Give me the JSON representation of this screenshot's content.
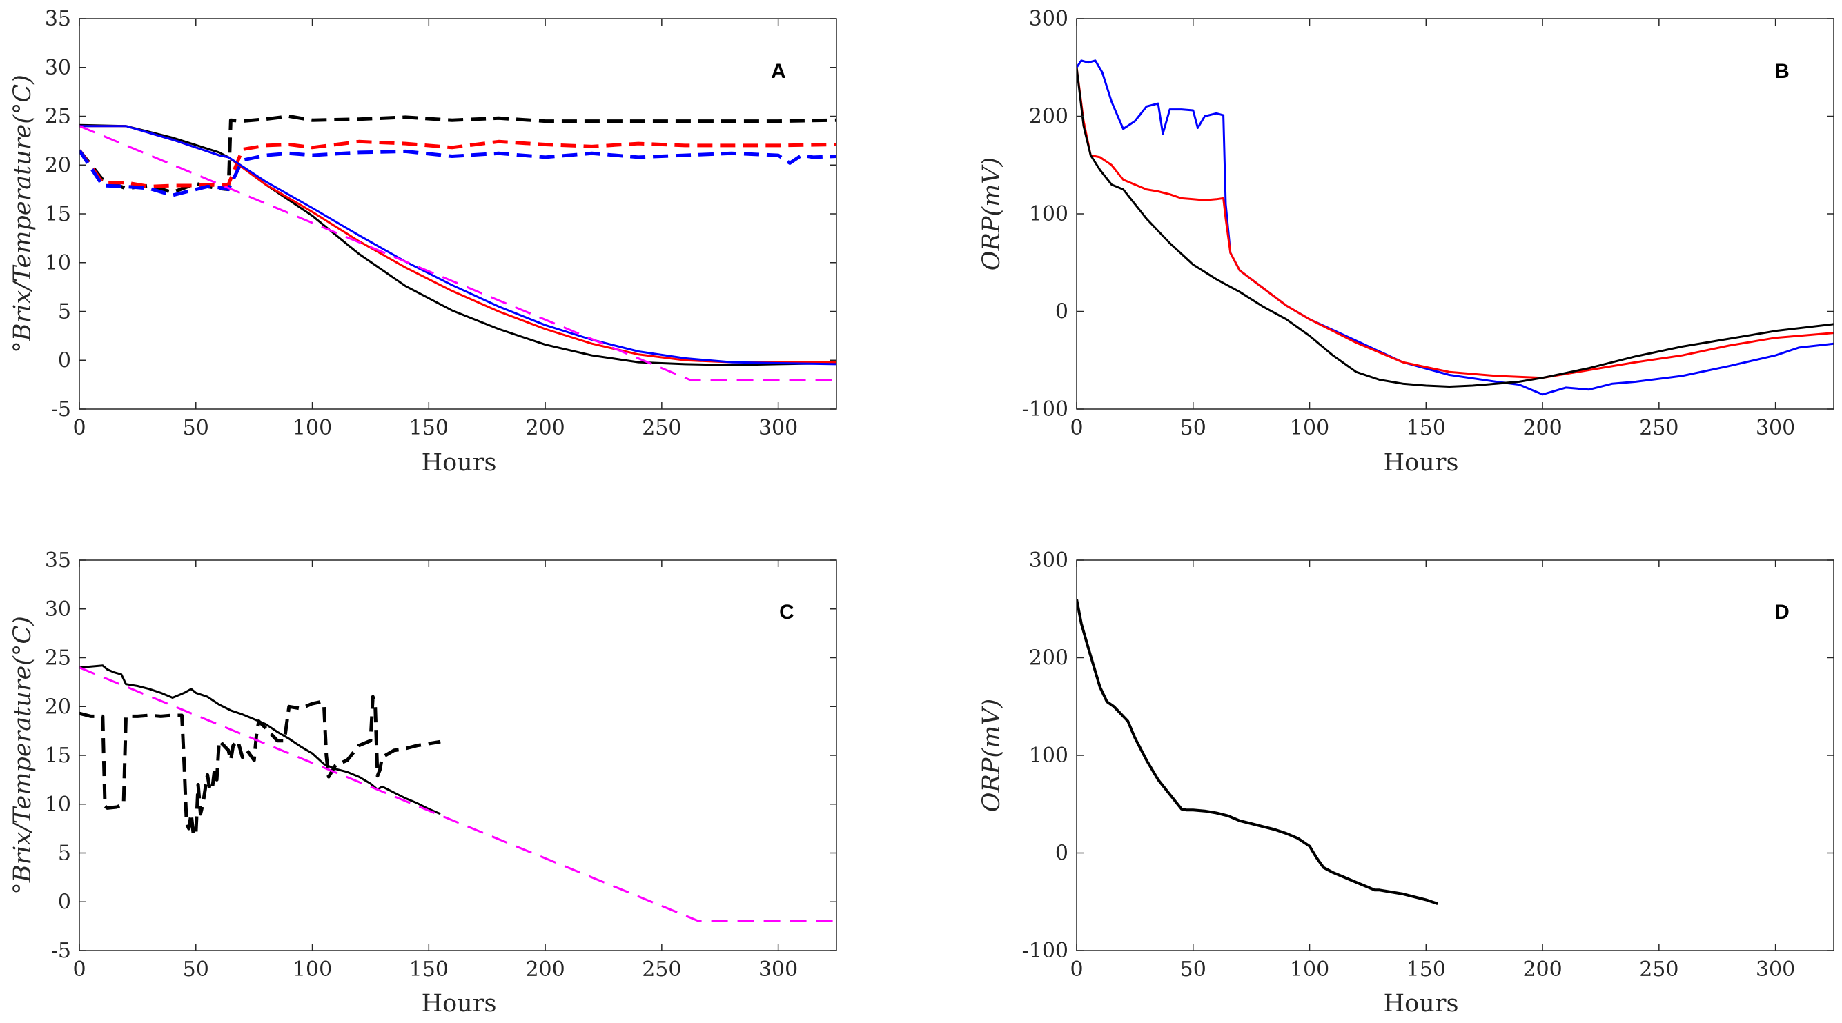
{
  "chart_data": [
    {
      "panel": "A",
      "type": "line",
      "xlabel": "Hours",
      "ylabel": "°Brix/Temperature(°C)",
      "xlim": [
        0,
        325
      ],
      "ylim": [
        -5,
        35
      ],
      "xticks": [
        0,
        50,
        100,
        150,
        200,
        250,
        300
      ],
      "yticks": [
        -5,
        0,
        5,
        10,
        15,
        20,
        25,
        30,
        35
      ],
      "series": [
        {
          "name": "temperature-black",
          "color": "#000000",
          "dash": "dashed",
          "width": 5,
          "x": [
            0,
            10,
            20,
            30,
            40,
            50,
            55,
            60,
            64,
            65,
            70,
            80,
            90,
            100,
            120,
            140,
            160,
            180,
            200,
            220,
            240,
            260,
            280,
            300,
            325
          ],
          "y": [
            21.5,
            18.5,
            17.6,
            17.9,
            17.2,
            18.1,
            17.8,
            17.6,
            17.5,
            24.6,
            24.5,
            24.7,
            25.0,
            24.6,
            24.7,
            24.9,
            24.6,
            24.8,
            24.5,
            24.5,
            24.5,
            24.5,
            24.5,
            24.5,
            24.6
          ]
        },
        {
          "name": "temperature-red",
          "color": "#ff0000",
          "dash": "dashed",
          "width": 5,
          "x": [
            0,
            10,
            20,
            30,
            40,
            50,
            55,
            60,
            64,
            70,
            80,
            90,
            100,
            120,
            140,
            160,
            180,
            200,
            220,
            240,
            260,
            280,
            300,
            325
          ],
          "y": [
            21.5,
            18.2,
            18.2,
            17.8,
            17.9,
            17.9,
            18.0,
            17.9,
            18.0,
            21.6,
            22.0,
            22.1,
            21.8,
            22.4,
            22.2,
            21.8,
            22.4,
            22.1,
            21.9,
            22.2,
            22.0,
            22.0,
            22.0,
            22.1
          ]
        },
        {
          "name": "temperature-blue",
          "color": "#0000ff",
          "dash": "dashed",
          "width": 5,
          "x": [
            0,
            10,
            20,
            30,
            40,
            50,
            55,
            60,
            64,
            70,
            80,
            90,
            100,
            120,
            140,
            160,
            180,
            200,
            220,
            240,
            260,
            280,
            300,
            305,
            310,
            315,
            325
          ],
          "y": [
            21.5,
            17.9,
            17.8,
            17.6,
            16.9,
            17.5,
            17.8,
            17.7,
            17.5,
            20.5,
            21.0,
            21.2,
            21.0,
            21.3,
            21.4,
            20.9,
            21.2,
            20.8,
            21.2,
            20.8,
            21.0,
            21.2,
            21.0,
            20.2,
            21.0,
            20.8,
            20.9
          ]
        },
        {
          "name": "brix-black",
          "color": "#000000",
          "dash": "solid",
          "width": 3,
          "x": [
            0,
            20,
            40,
            60,
            64,
            80,
            100,
            120,
            140,
            160,
            180,
            200,
            220,
            240,
            260,
            280,
            300,
            325
          ],
          "y": [
            24.1,
            24.0,
            22.8,
            21.3,
            20.8,
            18.0,
            14.8,
            10.9,
            7.6,
            5.1,
            3.2,
            1.6,
            0.5,
            -0.2,
            -0.4,
            -0.5,
            -0.4,
            -0.3
          ]
        },
        {
          "name": "brix-red",
          "color": "#ff0000",
          "dash": "solid",
          "width": 3,
          "x": [
            0,
            20,
            40,
            60,
            64,
            80,
            100,
            120,
            140,
            160,
            180,
            200,
            220,
            240,
            260,
            280,
            300,
            325
          ],
          "y": [
            24.0,
            24.0,
            22.6,
            21.0,
            20.8,
            18.0,
            15.2,
            12.2,
            9.5,
            7.1,
            5.0,
            3.2,
            1.7,
            0.6,
            0.0,
            -0.2,
            -0.2,
            -0.2
          ]
        },
        {
          "name": "brix-blue",
          "color": "#0000ff",
          "dash": "solid",
          "width": 3,
          "x": [
            0,
            20,
            40,
            60,
            64,
            80,
            100,
            120,
            140,
            160,
            180,
            200,
            220,
            240,
            260,
            280,
            300,
            325
          ],
          "y": [
            24.0,
            24.0,
            22.6,
            21.0,
            20.8,
            18.3,
            15.6,
            12.8,
            10.1,
            7.7,
            5.5,
            3.6,
            2.1,
            0.9,
            0.2,
            -0.2,
            -0.3,
            -0.4
          ]
        },
        {
          "name": "target-magenta",
          "color": "#ff00ff",
          "dash": "dashed",
          "width": 3,
          "x": [
            0,
            262,
            325
          ],
          "y": [
            24,
            -2,
            -2
          ]
        }
      ]
    },
    {
      "panel": "B",
      "type": "line",
      "xlabel": "Hours",
      "ylabel": "ORP(mV)",
      "xlim": [
        0,
        325
      ],
      "ylim": [
        -100,
        300
      ],
      "xticks": [
        0,
        50,
        100,
        150,
        200,
        250,
        300
      ],
      "yticks": [
        -100,
        0,
        100,
        200,
        300
      ],
      "series": [
        {
          "name": "orp-blue",
          "color": "#0000ff",
          "dash": "solid",
          "width": 3,
          "x": [
            0,
            2,
            5,
            8,
            11,
            15,
            20,
            25,
            30,
            35,
            37,
            40,
            45,
            50,
            52,
            55,
            60,
            63,
            64,
            66,
            70,
            80,
            90,
            100,
            120,
            140,
            160,
            180,
            190,
            200,
            210,
            220,
            230,
            240,
            260,
            280,
            300,
            310,
            325
          ],
          "y": [
            250,
            257,
            255,
            257,
            245,
            215,
            187,
            195,
            210,
            213,
            182,
            207,
            207,
            206,
            188,
            200,
            203,
            201,
            110,
            60,
            42,
            24,
            6,
            -8,
            -30,
            -52,
            -65,
            -72,
            -75,
            -85,
            -78,
            -80,
            -74,
            -72,
            -66,
            -56,
            -45,
            -37,
            -33
          ]
        },
        {
          "name": "orp-red",
          "color": "#ff0000",
          "dash": "solid",
          "width": 3,
          "x": [
            0,
            3,
            6,
            10,
            15,
            20,
            25,
            30,
            35,
            40,
            45,
            50,
            55,
            60,
            63,
            64,
            66,
            70,
            80,
            90,
            100,
            120,
            140,
            160,
            180,
            200,
            220,
            240,
            260,
            280,
            300,
            325
          ],
          "y": [
            250,
            195,
            160,
            158,
            150,
            135,
            130,
            125,
            123,
            120,
            116,
            115,
            114,
            115,
            116,
            95,
            60,
            42,
            24,
            6,
            -8,
            -32,
            -52,
            -62,
            -66,
            -68,
            -60,
            -52,
            -45,
            -35,
            -27,
            -22
          ]
        },
        {
          "name": "orp-black",
          "color": "#000000",
          "dash": "solid",
          "width": 3,
          "x": [
            0,
            3,
            6,
            10,
            15,
            20,
            25,
            30,
            40,
            50,
            60,
            70,
            80,
            90,
            100,
            110,
            120,
            130,
            140,
            150,
            160,
            170,
            180,
            190,
            200,
            220,
            240,
            260,
            280,
            300,
            325
          ],
          "y": [
            250,
            190,
            160,
            145,
            130,
            125,
            110,
            95,
            70,
            48,
            33,
            20,
            5,
            -8,
            -25,
            -45,
            -62,
            -70,
            -74,
            -76,
            -77,
            -76,
            -74,
            -72,
            -68,
            -58,
            -46,
            -36,
            -28,
            -20,
            -13
          ]
        }
      ]
    },
    {
      "panel": "C",
      "type": "line",
      "xlabel": "Hours",
      "ylabel": "°Brix/Temperature(°C)",
      "xlim": [
        0,
        325
      ],
      "ylim": [
        -5,
        35
      ],
      "xticks": [
        0,
        50,
        100,
        150,
        200,
        250,
        300
      ],
      "yticks": [
        -5,
        0,
        5,
        10,
        15,
        20,
        25,
        30,
        35
      ],
      "series": [
        {
          "name": "temperature-black",
          "color": "#000000",
          "dash": "dashed",
          "width": 5,
          "x": [
            0,
            5,
            10,
            11,
            12,
            16,
            19,
            20,
            25,
            30,
            35,
            40,
            44,
            45,
            46,
            47,
            48,
            49,
            50,
            51,
            52,
            53,
            55,
            56,
            57,
            58,
            59,
            60,
            62,
            64,
            65,
            66,
            68,
            70,
            72,
            75,
            76,
            77,
            80,
            85,
            88,
            90,
            95,
            100,
            104,
            105,
            106,
            107,
            110,
            115,
            120,
            125,
            126,
            127,
            128,
            129,
            130,
            135,
            140,
            145,
            150,
            155
          ],
          "y": [
            19.3,
            19.0,
            19.0,
            9.8,
            9.6,
            9.7,
            10.0,
            19.0,
            19.0,
            19.1,
            19.0,
            19.1,
            19.1,
            14.0,
            8.0,
            7.5,
            9.0,
            6.8,
            7.0,
            12.0,
            9.0,
            10.0,
            13.0,
            11.5,
            11.5,
            13.5,
            12.5,
            16.5,
            16.0,
            15.5,
            14.5,
            16.0,
            16.5,
            14.8,
            15.5,
            14.5,
            17.0,
            18.5,
            17.8,
            16.5,
            16.5,
            20.0,
            19.8,
            20.3,
            20.5,
            20.2,
            15.0,
            12.8,
            14.0,
            14.5,
            16.0,
            16.5,
            21.0,
            20.0,
            12.9,
            13.5,
            14.8,
            15.5,
            15.7,
            16.0,
            16.2,
            16.4
          ]
        },
        {
          "name": "brix-black",
          "color": "#000000",
          "dash": "solid",
          "width": 3,
          "x": [
            0,
            5,
            10,
            12,
            15,
            18,
            20,
            25,
            30,
            35,
            40,
            45,
            48,
            50,
            55,
            60,
            65,
            70,
            75,
            80,
            85,
            90,
            95,
            100,
            105,
            110,
            115,
            120,
            125,
            128,
            130,
            135,
            140,
            145,
            150,
            155
          ],
          "y": [
            24.0,
            24.1,
            24.2,
            23.8,
            23.5,
            23.3,
            22.3,
            22.1,
            21.8,
            21.4,
            20.9,
            21.4,
            21.8,
            21.4,
            21.0,
            20.2,
            19.6,
            19.2,
            18.7,
            18.2,
            17.4,
            16.7,
            15.9,
            15.2,
            14.1,
            13.6,
            13.3,
            12.8,
            12.1,
            11.5,
            11.8,
            11.2,
            10.6,
            10.1,
            9.5,
            9.0
          ]
        },
        {
          "name": "target-magenta",
          "color": "#ff00ff",
          "dash": "dashed",
          "width": 3,
          "x": [
            0,
            266,
            325
          ],
          "y": [
            24,
            -2,
            -2
          ]
        }
      ]
    },
    {
      "panel": "D",
      "type": "line",
      "xlabel": "Hours",
      "ylabel": "ORP(mV)",
      "xlim": [
        0,
        325
      ],
      "ylim": [
        -100,
        300
      ],
      "xticks": [
        0,
        50,
        100,
        150,
        200,
        250,
        300
      ],
      "yticks": [
        -100,
        0,
        100,
        200,
        300
      ],
      "series": [
        {
          "name": "orp-black",
          "color": "#000000",
          "dash": "solid",
          "width": 4,
          "x": [
            0,
            2,
            5,
            10,
            13,
            16,
            18,
            20,
            22,
            25,
            30,
            35,
            40,
            45,
            47,
            50,
            55,
            60,
            65,
            70,
            75,
            80,
            85,
            90,
            95,
            100,
            103,
            106,
            110,
            115,
            120,
            125,
            128,
            130,
            135,
            140,
            145,
            150,
            155
          ],
          "y": [
            260,
            235,
            210,
            170,
            155,
            150,
            145,
            140,
            135,
            118,
            95,
            75,
            60,
            45,
            44,
            44,
            43,
            41,
            38,
            33,
            30,
            27,
            24,
            20,
            15,
            7,
            -5,
            -15,
            -20,
            -25,
            -30,
            -35,
            -38,
            -38,
            -40,
            -42,
            -45,
            -48,
            -52
          ]
        }
      ]
    }
  ]
}
